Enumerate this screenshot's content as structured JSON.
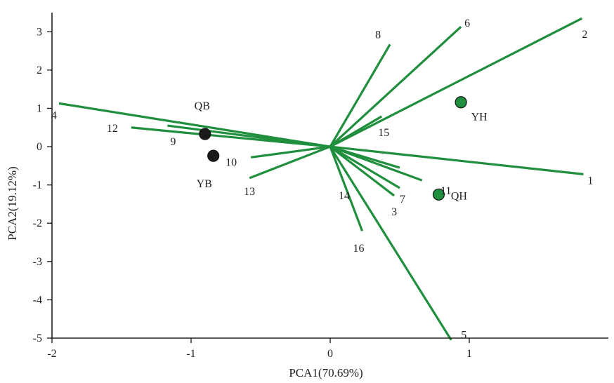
{
  "chart_data": {
    "type": "scatter",
    "subtype": "pca-biplot",
    "xlabel": "PCA1(70.69%)",
    "ylabel": "PCA2(19.12%)",
    "xlim": [
      -2,
      2
    ],
    "ylim": [
      -5,
      3.5
    ],
    "x_ticks": [
      -2,
      -1,
      0,
      1
    ],
    "y_ticks": [
      3,
      2,
      1,
      0,
      -1,
      -2,
      -3,
      -4,
      -5
    ],
    "origin": [
      0,
      0
    ],
    "grid": false,
    "line_color": "#1f8f3d",
    "vectors": [
      {
        "label": "1",
        "x": 1.82,
        "y": -0.72
      },
      {
        "label": "2",
        "x": 1.81,
        "y": 3.35
      },
      {
        "label": "3",
        "x": 0.46,
        "y": -1.28
      },
      {
        "label": "4",
        "x": -1.95,
        "y": 1.13
      },
      {
        "label": "5",
        "x": 0.87,
        "y": -5.05
      },
      {
        "label": "6",
        "x": 0.94,
        "y": 3.13
      },
      {
        "label": "7",
        "x": 0.5,
        "y": -1.08
      },
      {
        "label": "8",
        "x": 0.43,
        "y": 2.67
      },
      {
        "label": "9",
        "x": -1.17,
        "y": 0.55
      },
      {
        "label": "10",
        "x": -0.57,
        "y": -0.28
      },
      {
        "label": "11",
        "x": 0.66,
        "y": -0.88
      },
      {
        "label": "12",
        "x": -1.43,
        "y": 0.5
      },
      {
        "label": "13",
        "x": -0.58,
        "y": -0.82
      },
      {
        "label": "14",
        "x": 0.5,
        "y": -0.55
      },
      {
        "label": "15",
        "x": 0.37,
        "y": 0.79
      },
      {
        "label": "16",
        "x": 0.23,
        "y": -2.2
      }
    ],
    "points": [
      {
        "label": "QB",
        "x": -0.9,
        "y": 0.33,
        "color": "#1a1a1a"
      },
      {
        "label": "YB",
        "x": -0.84,
        "y": -0.24,
        "color": "#1a1a1a"
      },
      {
        "label": "YH",
        "x": 0.94,
        "y": 1.16,
        "color": "#1f8f3d"
      },
      {
        "label": "QH",
        "x": 0.78,
        "y": -1.25,
        "color": "#1f8f3d"
      }
    ]
  }
}
